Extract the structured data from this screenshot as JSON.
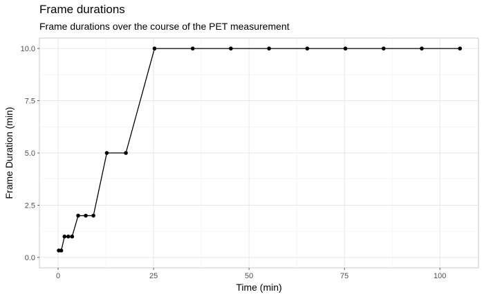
{
  "chart_data": {
    "type": "line",
    "title": "Frame durations",
    "subtitle": "Frame durations over the course of the PET measurement",
    "xlabel": "Time (min)",
    "ylabel": "Frame Duration (min)",
    "xlim": [
      -4.9,
      110.1
    ],
    "ylim": [
      -0.5,
      10.5
    ],
    "x_ticks": [
      0,
      25,
      50,
      75,
      100
    ],
    "y_ticks": [
      0.0,
      2.5,
      5.0,
      7.5,
      10.0
    ],
    "x_tick_labels": [
      "0",
      "25",
      "50",
      "75",
      "100"
    ],
    "y_tick_labels": [
      "0.0",
      "2.5",
      "5.0",
      "7.5",
      "10.0"
    ],
    "grid": true,
    "legend": "none",
    "series": [
      {
        "color": "#000000",
        "x": [
          0.17,
          0.83,
          1.67,
          2.67,
          3.67,
          5.25,
          7.25,
          9.25,
          12.75,
          17.75,
          25.25,
          35.25,
          45.25,
          55.25,
          65.25,
          75.25,
          85.25,
          95.25,
          105.25
        ],
        "y": [
          0.33,
          0.33,
          1,
          1,
          1,
          2,
          2,
          2,
          5,
          5,
          10,
          10,
          10,
          10,
          10,
          10,
          10,
          10,
          10
        ]
      }
    ]
  }
}
